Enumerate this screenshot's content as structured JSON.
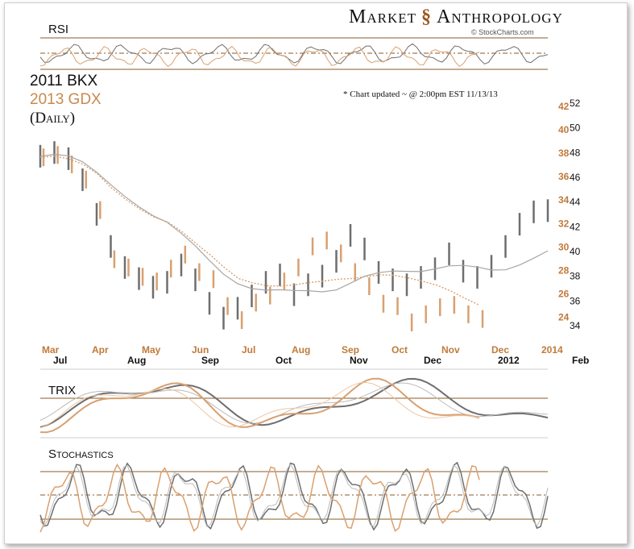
{
  "brand": {
    "title_left": "Market",
    "title_right": "Anthropology",
    "dna_glyph": "§",
    "source": "© StockCharts.com"
  },
  "legend": {
    "line1": "2011 BKX",
    "line2": "2013 GDX",
    "line3": "(Daily)"
  },
  "note": "* Chart updated ~ @ 2:00pm EST 11/13/13",
  "panels": {
    "rsi": "RSI",
    "trix": "TRIX",
    "stochastics": "Stochastics"
  },
  "colors": {
    "bkx": "#6e6e6e",
    "gdx": "#d9a070",
    "gdx_dark": "#b26a30",
    "line": "#8a5a2a",
    "label_gdx": "#c07a3a"
  },
  "chart_data": {
    "type": "line",
    "title": "",
    "series": [
      {
        "name": "2011 BKX",
        "axis": "right-outer",
        "ylim": [
          34,
          52
        ],
        "x_tick_labels": [
          "Jul",
          "Aug",
          "Sep",
          "Oct",
          "Nov",
          "Dec",
          "2012",
          "Feb"
        ],
        "values": [
          48.1,
          48.4,
          47.9,
          46.2,
          43.4,
          40.8,
          39.1,
          38.2,
          37.5,
          37.9,
          39.3,
          38.1,
          36.2,
          35.0,
          35.8,
          36.8,
          37.9,
          38.5,
          36.9,
          37.7,
          38.4,
          39.6,
          41.7,
          40.6,
          38.7,
          38.1,
          37.7,
          38.3,
          39.0,
          40.2,
          38.8,
          38.3,
          39.2,
          40.8,
          42.6,
          43.6,
          43.7
        ]
      },
      {
        "name": "2013 GDX",
        "axis": "right-inner",
        "ylim": [
          23,
          42
        ],
        "x_tick_labels": [
          "Mar",
          "Apr",
          "May",
          "Jun",
          "Jul",
          "Aug",
          "Sep",
          "Oct",
          "Nov",
          "Dec",
          "2014"
        ],
        "values": [
          38.2,
          38.4,
          37.6,
          36.3,
          33.7,
          29.5,
          28.8,
          28.0,
          27.6,
          28.7,
          29.9,
          28.4,
          27.8,
          25.5,
          24.3,
          25.8,
          26.4,
          27.6,
          28.8,
          30.6,
          31.1,
          30.0,
          28.4,
          27.2,
          25.7,
          25.5,
          24.1,
          24.8,
          25.4,
          25.6,
          24.8,
          24.4
        ]
      }
    ],
    "right_axis_outer_ticks": [
      52,
      50,
      48,
      46,
      44,
      42,
      40,
      38,
      36,
      34
    ],
    "right_axis_inner_ticks": [
      42,
      40,
      38,
      36,
      34,
      32,
      30,
      28,
      26,
      24
    ],
    "indicators": {
      "rsi": {
        "levels": [
          70,
          50,
          30
        ]
      },
      "trix": {
        "zero_line": true
      },
      "stochastics": {
        "levels": [
          80,
          50,
          20
        ]
      }
    }
  }
}
